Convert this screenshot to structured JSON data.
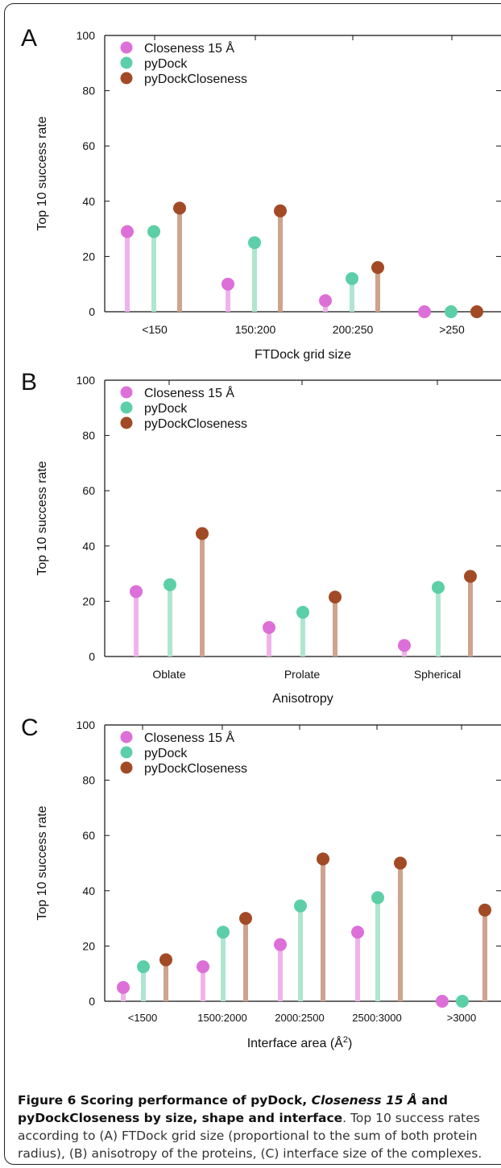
{
  "colors": {
    "closeness": "#dd6fd8",
    "closeness_stem": "#efb3ec",
    "pydock": "#5ccfa7",
    "pydock_stem": "#aee6cf",
    "pydockcloseness": "#a24a26",
    "pydockcloseness_stem": "#cfa38e"
  },
  "chart_data": [
    {
      "panel": "A",
      "type": "scatter",
      "style": "lollipop",
      "xlabel": "FTDock grid size",
      "ylabel": "Top 10 success rate",
      "ylim": [
        0,
        100
      ],
      "yticks": [
        "0",
        "20",
        "40",
        "60",
        "80",
        "100"
      ],
      "categories": [
        "<150",
        "150:200",
        "200:250",
        ">250"
      ],
      "legend_position": "top-left",
      "series": [
        {
          "name": "Closeness 15 Å",
          "values": [
            29,
            10,
            4,
            0
          ]
        },
        {
          "name": "pyDock",
          "values": [
            29,
            25,
            12,
            0
          ]
        },
        {
          "name": "pyDockCloseness",
          "values": [
            37.5,
            36.5,
            16,
            0
          ]
        }
      ]
    },
    {
      "panel": "B",
      "type": "scatter",
      "style": "lollipop",
      "xlabel": "Anisotropy",
      "ylabel": "Top 10 success rate",
      "ylim": [
        0,
        100
      ],
      "yticks": [
        "0",
        "20",
        "40",
        "60",
        "80",
        "100"
      ],
      "categories": [
        "Oblate",
        "Prolate",
        "Spherical"
      ],
      "legend_position": "top-left",
      "series": [
        {
          "name": "Closeness 15 Å",
          "values": [
            23.5,
            10.5,
            4
          ]
        },
        {
          "name": "pyDock",
          "values": [
            26,
            16,
            25
          ]
        },
        {
          "name": "pyDockCloseness",
          "values": [
            44.5,
            21.5,
            29
          ]
        }
      ]
    },
    {
      "panel": "C",
      "type": "scatter",
      "style": "lollipop",
      "xlabel": "Interface area (Å²)",
      "ylabel": "Top 10 success rate",
      "ylim": [
        0,
        100
      ],
      "yticks": [
        "0",
        "20",
        "40",
        "60",
        "80",
        "100"
      ],
      "categories": [
        "<1500",
        "1500:2000",
        "2000:2500",
        "2500:3000",
        ">3000"
      ],
      "legend_position": "top-left",
      "series": [
        {
          "name": "Closeness 15 Å",
          "values": [
            5,
            12.5,
            20.5,
            25,
            0
          ]
        },
        {
          "name": "pyDock",
          "values": [
            12.5,
            25,
            34.5,
            37.5,
            0
          ]
        },
        {
          "name": "pyDockCloseness",
          "values": [
            15,
            30,
            51.5,
            50,
            33
          ]
        }
      ]
    }
  ],
  "caption": {
    "bold_1": "Figure 6 Scoring performance of pyDock, ",
    "italic": "Closeness 15 Å",
    "bold_2": " and pyDockCloseness by size, shape and interface",
    "rest": ". Top 10 success rates according to (A) FTDock grid size (proportional to the sum of both protein radius), (B) anisotropy of the proteins, (C) interface size of the complexes."
  }
}
